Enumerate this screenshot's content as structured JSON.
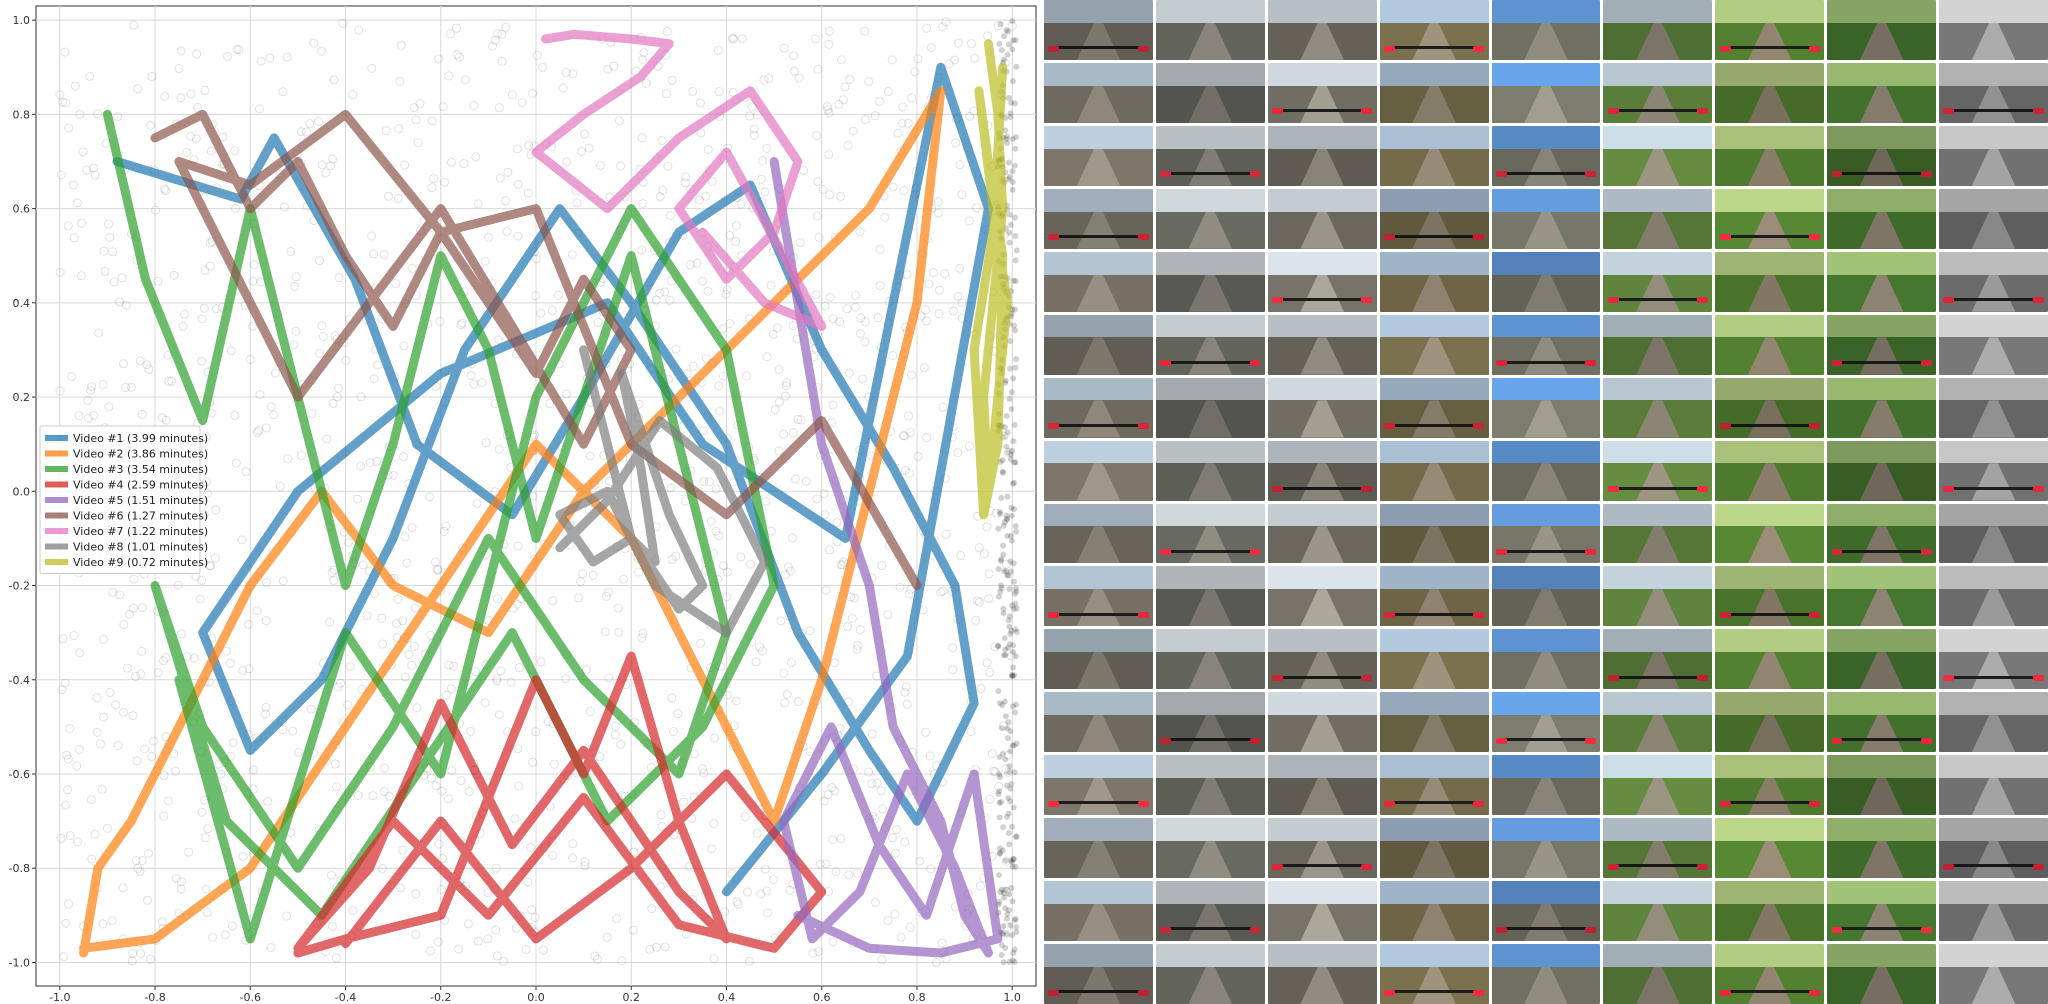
{
  "chart_data": {
    "type": "line",
    "title": "",
    "xlabel": "",
    "ylabel": "",
    "xlim": [
      -1.05,
      1.05
    ],
    "ylim": [
      -1.05,
      1.03
    ],
    "x_ticks": [
      "-1.0",
      "-0.8",
      "-0.6",
      "-0.4",
      "-0.2",
      "0.0",
      "0.2",
      "0.4",
      "0.6",
      "0.8",
      "1.0"
    ],
    "y_ticks": [
      "-1.0",
      "-0.8",
      "-0.6",
      "-0.4",
      "-0.2",
      "0.0",
      "0.2",
      "0.4",
      "0.6",
      "0.8",
      "1.0"
    ],
    "grid": true,
    "legend_position": "center-left",
    "background_scatter_color": "#000000",
    "series": [
      {
        "name": "Video #1 (3.99 minutes)",
        "color": "#1f77b4",
        "x": [
          -0.88,
          -0.62,
          -0.55,
          -0.38,
          -0.25,
          -0.05,
          0.1,
          0.3,
          0.45,
          0.6,
          0.75,
          0.88,
          0.92,
          0.8,
          0.7,
          0.55,
          0.4,
          0.2,
          0.05,
          -0.15,
          -0.3,
          -0.45,
          -0.6,
          -0.7,
          -0.5,
          -0.2,
          0.15,
          0.35,
          0.65,
          0.85,
          0.95,
          0.78,
          0.6,
          0.4
        ],
        "y": [
          0.7,
          0.62,
          0.75,
          0.45,
          0.1,
          -0.05,
          0.2,
          0.55,
          0.65,
          0.3,
          0.05,
          -0.2,
          -0.45,
          -0.7,
          -0.55,
          -0.3,
          0.1,
          0.4,
          0.6,
          0.3,
          -0.1,
          -0.4,
          -0.55,
          -0.3,
          0.0,
          0.25,
          0.4,
          0.1,
          -0.1,
          0.9,
          0.6,
          -0.35,
          -0.6,
          -0.85
        ]
      },
      {
        "name": "Video #2 (3.86 minutes)",
        "color": "#ff7f0e",
        "x": [
          -0.95,
          -0.92,
          -0.85,
          -0.8,
          -0.7,
          -0.6,
          -0.45,
          -0.3,
          -0.1,
          0.1,
          0.3,
          0.5,
          0.7,
          0.85,
          0.8,
          0.7,
          0.6,
          0.5,
          0.4,
          0.2,
          0.0,
          -0.2,
          -0.4,
          -0.6,
          -0.8,
          -0.95
        ],
        "y": [
          -0.98,
          -0.8,
          -0.7,
          -0.6,
          -0.4,
          -0.2,
          0.0,
          -0.2,
          -0.3,
          0.0,
          0.2,
          0.4,
          0.6,
          0.85,
          0.4,
          0.0,
          -0.4,
          -0.7,
          -0.5,
          -0.1,
          0.1,
          -0.2,
          -0.5,
          -0.8,
          -0.95,
          -0.97
        ]
      },
      {
        "name": "Video #3 (3.54 minutes)",
        "color": "#2ca02c",
        "x": [
          -0.9,
          -0.82,
          -0.7,
          -0.6,
          -0.5,
          -0.4,
          -0.3,
          -0.2,
          -0.1,
          0.0,
          0.1,
          0.2,
          0.3,
          0.4,
          0.3,
          0.1,
          -0.1,
          -0.3,
          -0.5,
          -0.7,
          -0.8,
          -0.65,
          -0.45,
          -0.25,
          -0.05,
          0.15,
          0.35,
          0.5,
          0.4,
          0.2,
          0.0,
          -0.2,
          -0.4,
          -0.6,
          -0.75
        ],
        "y": [
          0.8,
          0.45,
          0.15,
          0.6,
          0.2,
          -0.2,
          0.1,
          0.5,
          0.3,
          -0.1,
          0.2,
          0.5,
          0.1,
          -0.3,
          -0.6,
          -0.4,
          -0.1,
          -0.5,
          -0.8,
          -0.5,
          -0.2,
          -0.7,
          -0.9,
          -0.6,
          -0.3,
          -0.7,
          -0.5,
          -0.2,
          0.3,
          0.6,
          0.2,
          -0.6,
          -0.3,
          -0.95,
          -0.4
        ]
      },
      {
        "name": "Video #4 (2.59 minutes)",
        "color": "#d62728",
        "x": [
          -0.5,
          -0.4,
          -0.2,
          0.0,
          0.1,
          0.2,
          0.3,
          0.4,
          0.3,
          0.1,
          -0.05,
          -0.2,
          -0.35,
          -0.5,
          -0.3,
          -0.1,
          0.1,
          0.3,
          0.5,
          0.6,
          0.4,
          0.2,
          0.0,
          -0.2,
          -0.4
        ],
        "y": [
          -0.98,
          -0.95,
          -0.9,
          -0.4,
          -0.6,
          -0.35,
          -0.7,
          -0.95,
          -0.85,
          -0.55,
          -0.75,
          -0.45,
          -0.8,
          -0.97,
          -0.7,
          -0.9,
          -0.65,
          -0.92,
          -0.97,
          -0.85,
          -0.6,
          -0.8,
          -0.95,
          -0.7,
          -0.96
        ]
      },
      {
        "name": "Video #5 (1.51 minutes)",
        "color": "#9467bd",
        "x": [
          0.5,
          0.55,
          0.6,
          0.7,
          0.75,
          0.85,
          0.9,
          0.95,
          0.88,
          0.78,
          0.68,
          0.58,
          0.52,
          0.62,
          0.72,
          0.82,
          0.92,
          0.97,
          0.85,
          0.7,
          0.55
        ],
        "y": [
          0.7,
          0.4,
          0.1,
          -0.2,
          -0.5,
          -0.7,
          -0.9,
          -0.98,
          -0.8,
          -0.6,
          -0.85,
          -0.95,
          -0.7,
          -0.5,
          -0.75,
          -0.9,
          -0.6,
          -0.95,
          -0.98,
          -0.97,
          -0.9
        ]
      },
      {
        "name": "Video #6 (1.27 minutes)",
        "color": "#8c564b",
        "x": [
          -0.8,
          -0.7,
          -0.6,
          -0.5,
          -0.4,
          -0.3,
          -0.2,
          -0.1,
          0.0,
          0.1,
          0.2,
          0.1,
          -0.05,
          -0.2,
          -0.35,
          -0.5,
          -0.65,
          -0.75,
          -0.6,
          -0.4,
          -0.2,
          0.0,
          0.2,
          0.4,
          0.6,
          0.8
        ],
        "y": [
          0.75,
          0.8,
          0.6,
          0.7,
          0.5,
          0.35,
          0.55,
          0.4,
          0.25,
          0.45,
          0.3,
          0.1,
          0.35,
          0.6,
          0.4,
          0.2,
          0.5,
          0.7,
          0.65,
          0.8,
          0.55,
          0.6,
          0.1,
          -0.05,
          0.15,
          -0.2
        ]
      },
      {
        "name": "Video #7 (1.22 minutes)",
        "color": "#e377c2",
        "x": [
          0.02,
          0.08,
          0.2,
          0.28,
          0.22,
          0.1,
          0.0,
          0.15,
          0.3,
          0.45,
          0.55,
          0.5,
          0.4,
          0.3,
          0.4,
          0.52,
          0.6,
          0.48,
          0.35
        ],
        "y": [
          0.96,
          0.97,
          0.96,
          0.95,
          0.88,
          0.8,
          0.72,
          0.6,
          0.75,
          0.85,
          0.7,
          0.55,
          0.45,
          0.6,
          0.72,
          0.5,
          0.35,
          0.4,
          0.55
        ]
      },
      {
        "name": "Video #8 (1.01 minutes)",
        "color": "#7f7f7f",
        "x": [
          0.1,
          0.15,
          0.2,
          0.25,
          0.22,
          0.18,
          0.28,
          0.35,
          0.3,
          0.2,
          0.12,
          0.05,
          0.15,
          0.25,
          0.4,
          0.48,
          0.38,
          0.26,
          0.15,
          0.05
        ],
        "y": [
          0.3,
          0.1,
          -0.1,
          -0.15,
          0.05,
          0.25,
          -0.05,
          -0.2,
          -0.25,
          -0.1,
          -0.15,
          -0.05,
          0.0,
          -0.2,
          -0.3,
          -0.15,
          0.05,
          0.15,
          -0.02,
          -0.12
        ]
      },
      {
        "name": "Video #9 (0.72 minutes)",
        "color": "#bcbd22",
        "x": [
          0.95,
          0.97,
          0.98,
          0.96,
          0.94,
          0.95,
          0.97,
          0.99,
          0.96,
          0.93,
          0.95,
          0.98,
          0.97,
          0.94,
          0.92,
          0.96,
          0.98
        ],
        "y": [
          0.95,
          0.8,
          0.6,
          0.4,
          0.2,
          0.0,
          0.2,
          0.4,
          0.6,
          0.85,
          0.7,
          0.5,
          0.1,
          -0.05,
          0.3,
          0.55,
          0.9
        ]
      }
    ]
  },
  "thumbnails": {
    "columns": 9,
    "rows": 16,
    "column_palettes": [
      {
        "sky": "#a9b9c6",
        "ground": "#6f6a5f",
        "trail": "#8e887b"
      },
      {
        "sky": "#b9c0c3",
        "ground": "#5d5f57",
        "trail": "#807d74"
      },
      {
        "sky": "#c4ccd2",
        "ground": "#6a675d",
        "trail": "#9a958a"
      },
      {
        "sky": "#9fb4c7",
        "ground": "#6d6546",
        "trail": "#8e8370"
      },
      {
        "sky": "#5e93d2",
        "ground": "#6f6f63",
        "trail": "#8f8d80"
      },
      {
        "sky": "#b8c6cf",
        "ground": "#5a7d3a",
        "trail": "#8b8574"
      },
      {
        "sky": "#a8c07a",
        "ground": "#4e7a2e",
        "trail": "#8a7e6a"
      },
      {
        "sky": "#8fae6a",
        "ground": "#3e6a2a",
        "trail": "#7e7566"
      },
      {
        "sky": "#bcbcbc",
        "ground": "#6b6b6b",
        "trail": "#9a9a9a"
      }
    ]
  }
}
